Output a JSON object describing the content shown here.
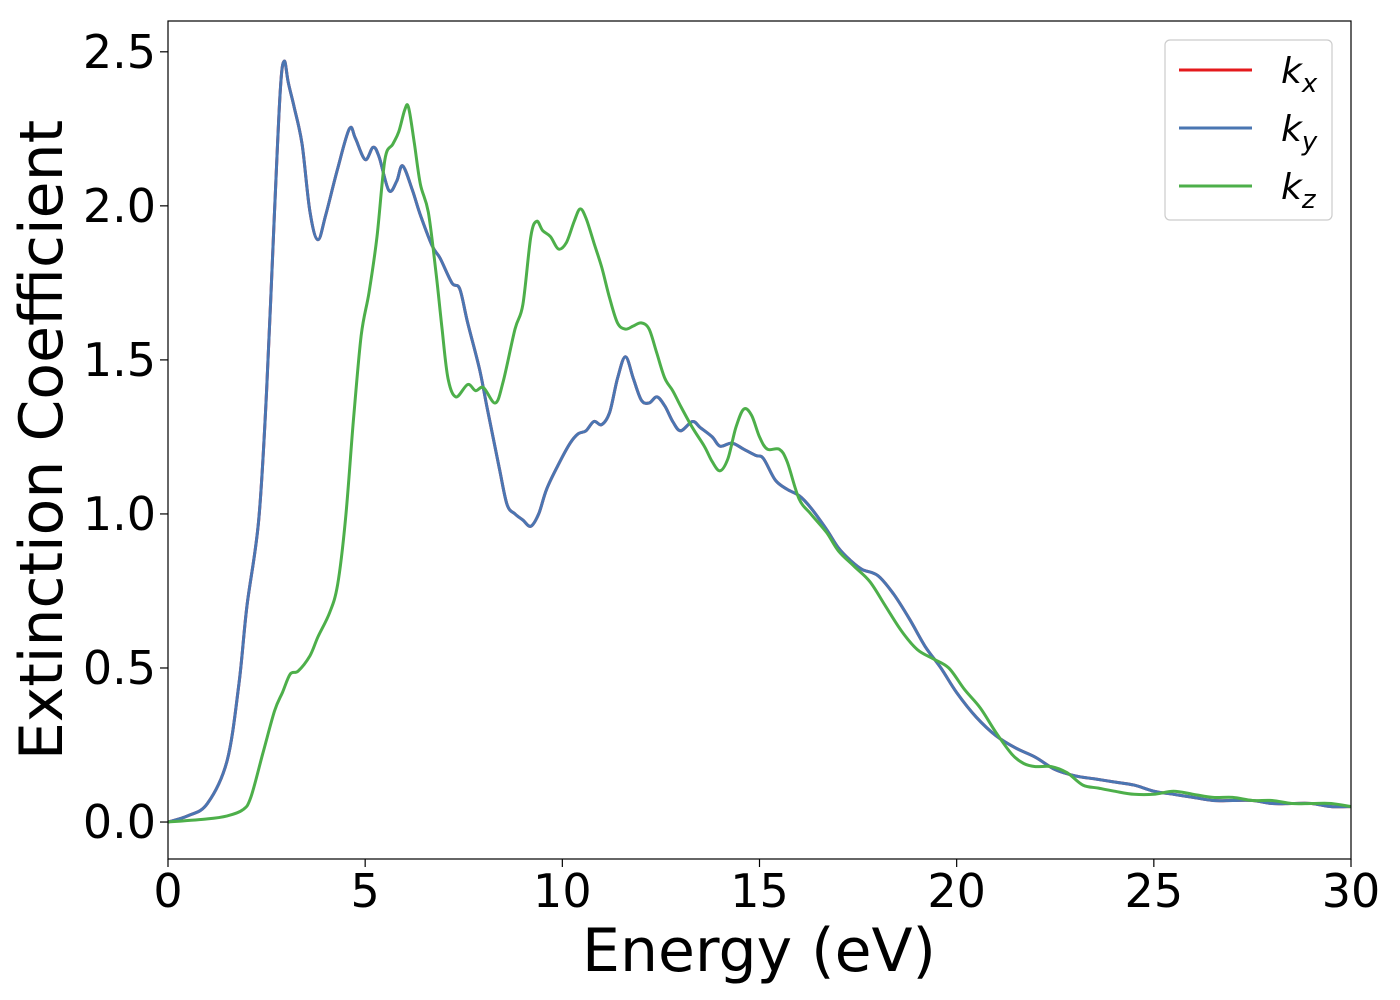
{
  "chart_data": {
    "type": "line",
    "title": "",
    "xlabel": "Energy (eV)",
    "ylabel": "Extinction Coefficient",
    "xlim": [
      0,
      30
    ],
    "ylim": [
      -0.12,
      2.6
    ],
    "xticks": [
      0,
      5,
      10,
      15,
      20,
      25,
      30
    ],
    "xtick_labels": [
      "0",
      "5",
      "10",
      "15",
      "20",
      "25",
      "30"
    ],
    "yticks": [
      0.0,
      0.5,
      1.0,
      1.5,
      2.0,
      2.5
    ],
    "ytick_labels": [
      "0.0",
      "0.5",
      "1.0",
      "1.5",
      "2.0",
      "2.5"
    ],
    "grid": false,
    "legend_position": "top-right",
    "series": [
      {
        "name": "kx",
        "legend_base": "k",
        "legend_sub": "x",
        "color": "#e41a1c",
        "points": [
          [
            0,
            0
          ],
          [
            0.5,
            0.02
          ],
          [
            1,
            0.06
          ],
          [
            1.5,
            0.2
          ],
          [
            1.8,
            0.45
          ],
          [
            2,
            0.7
          ],
          [
            2.3,
            0.98
          ],
          [
            2.5,
            1.4
          ],
          [
            2.7,
            1.98
          ],
          [
            2.85,
            2.38
          ],
          [
            2.95,
            2.47
          ],
          [
            3.05,
            2.4
          ],
          [
            3.2,
            2.32
          ],
          [
            3.4,
            2.2
          ],
          [
            3.6,
            1.98
          ],
          [
            3.8,
            1.89
          ],
          [
            4,
            1.97
          ],
          [
            4.3,
            2.12
          ],
          [
            4.6,
            2.25
          ],
          [
            4.75,
            2.22
          ],
          [
            5,
            2.15
          ],
          [
            5.2,
            2.19
          ],
          [
            5.35,
            2.16
          ],
          [
            5.6,
            2.05
          ],
          [
            5.8,
            2.08
          ],
          [
            5.95,
            2.13
          ],
          [
            6.2,
            2.05
          ],
          [
            6.4,
            1.97
          ],
          [
            6.7,
            1.87
          ],
          [
            6.9,
            1.83
          ],
          [
            7.2,
            1.75
          ],
          [
            7.4,
            1.73
          ],
          [
            7.6,
            1.62
          ],
          [
            7.9,
            1.47
          ],
          [
            8.1,
            1.34
          ],
          [
            8.4,
            1.15
          ],
          [
            8.6,
            1.03
          ],
          [
            8.8,
            1.0
          ],
          [
            9,
            0.98
          ],
          [
            9.2,
            0.96
          ],
          [
            9.4,
            1.0
          ],
          [
            9.6,
            1.08
          ],
          [
            9.9,
            1.16
          ],
          [
            10.2,
            1.23
          ],
          [
            10.4,
            1.26
          ],
          [
            10.6,
            1.27
          ],
          [
            10.8,
            1.3
          ],
          [
            11,
            1.29
          ],
          [
            11.2,
            1.33
          ],
          [
            11.4,
            1.44
          ],
          [
            11.6,
            1.51
          ],
          [
            11.8,
            1.44
          ],
          [
            12,
            1.37
          ],
          [
            12.2,
            1.36
          ],
          [
            12.4,
            1.38
          ],
          [
            12.6,
            1.35
          ],
          [
            12.8,
            1.3
          ],
          [
            13,
            1.27
          ],
          [
            13.3,
            1.3
          ],
          [
            13.5,
            1.28
          ],
          [
            13.8,
            1.25
          ],
          [
            14,
            1.22
          ],
          [
            14.3,
            1.23
          ],
          [
            14.6,
            1.21
          ],
          [
            14.9,
            1.19
          ],
          [
            15.1,
            1.18
          ],
          [
            15.4,
            1.11
          ],
          [
            15.7,
            1.08
          ],
          [
            16,
            1.06
          ],
          [
            16.3,
            1.02
          ],
          [
            16.7,
            0.95
          ],
          [
            17,
            0.89
          ],
          [
            17.3,
            0.85
          ],
          [
            17.6,
            0.82
          ],
          [
            18,
            0.8
          ],
          [
            18.4,
            0.74
          ],
          [
            18.8,
            0.66
          ],
          [
            19.2,
            0.57
          ],
          [
            19.6,
            0.5
          ],
          [
            20,
            0.42
          ],
          [
            20.5,
            0.34
          ],
          [
            21,
            0.28
          ],
          [
            21.5,
            0.24
          ],
          [
            22,
            0.21
          ],
          [
            22.5,
            0.17
          ],
          [
            23,
            0.15
          ],
          [
            23.5,
            0.14
          ],
          [
            24,
            0.13
          ],
          [
            24.5,
            0.12
          ],
          [
            25,
            0.1
          ],
          [
            25.5,
            0.09
          ],
          [
            26,
            0.08
          ],
          [
            26.5,
            0.07
          ],
          [
            27,
            0.07
          ],
          [
            27.5,
            0.07
          ],
          [
            28,
            0.06
          ],
          [
            28.5,
            0.06
          ],
          [
            29,
            0.06
          ],
          [
            29.5,
            0.05
          ],
          [
            30,
            0.05
          ]
        ]
      },
      {
        "name": "ky",
        "legend_base": "k",
        "legend_sub": "y",
        "color": "#4a76b2",
        "points": [
          [
            0,
            0
          ],
          [
            0.5,
            0.02
          ],
          [
            1,
            0.06
          ],
          [
            1.5,
            0.2
          ],
          [
            1.8,
            0.45
          ],
          [
            2,
            0.7
          ],
          [
            2.3,
            0.98
          ],
          [
            2.5,
            1.4
          ],
          [
            2.7,
            1.98
          ],
          [
            2.85,
            2.38
          ],
          [
            2.95,
            2.47
          ],
          [
            3.05,
            2.4
          ],
          [
            3.2,
            2.32
          ],
          [
            3.4,
            2.2
          ],
          [
            3.6,
            1.98
          ],
          [
            3.8,
            1.89
          ],
          [
            4,
            1.97
          ],
          [
            4.3,
            2.12
          ],
          [
            4.6,
            2.25
          ],
          [
            4.75,
            2.22
          ],
          [
            5,
            2.15
          ],
          [
            5.2,
            2.19
          ],
          [
            5.35,
            2.16
          ],
          [
            5.6,
            2.05
          ],
          [
            5.8,
            2.08
          ],
          [
            5.95,
            2.13
          ],
          [
            6.2,
            2.05
          ],
          [
            6.4,
            1.97
          ],
          [
            6.7,
            1.87
          ],
          [
            6.9,
            1.83
          ],
          [
            7.2,
            1.75
          ],
          [
            7.4,
            1.73
          ],
          [
            7.6,
            1.62
          ],
          [
            7.9,
            1.47
          ],
          [
            8.1,
            1.34
          ],
          [
            8.4,
            1.15
          ],
          [
            8.6,
            1.03
          ],
          [
            8.8,
            1.0
          ],
          [
            9,
            0.98
          ],
          [
            9.2,
            0.96
          ],
          [
            9.4,
            1.0
          ],
          [
            9.6,
            1.08
          ],
          [
            9.9,
            1.16
          ],
          [
            10.2,
            1.23
          ],
          [
            10.4,
            1.26
          ],
          [
            10.6,
            1.27
          ],
          [
            10.8,
            1.3
          ],
          [
            11,
            1.29
          ],
          [
            11.2,
            1.33
          ],
          [
            11.4,
            1.44
          ],
          [
            11.6,
            1.51
          ],
          [
            11.8,
            1.44
          ],
          [
            12,
            1.37
          ],
          [
            12.2,
            1.36
          ],
          [
            12.4,
            1.38
          ],
          [
            12.6,
            1.35
          ],
          [
            12.8,
            1.3
          ],
          [
            13,
            1.27
          ],
          [
            13.3,
            1.3
          ],
          [
            13.5,
            1.28
          ],
          [
            13.8,
            1.25
          ],
          [
            14,
            1.22
          ],
          [
            14.3,
            1.23
          ],
          [
            14.6,
            1.21
          ],
          [
            14.9,
            1.19
          ],
          [
            15.1,
            1.18
          ],
          [
            15.4,
            1.11
          ],
          [
            15.7,
            1.08
          ],
          [
            16,
            1.06
          ],
          [
            16.3,
            1.02
          ],
          [
            16.7,
            0.95
          ],
          [
            17,
            0.89
          ],
          [
            17.3,
            0.85
          ],
          [
            17.6,
            0.82
          ],
          [
            18,
            0.8
          ],
          [
            18.4,
            0.74
          ],
          [
            18.8,
            0.66
          ],
          [
            19.2,
            0.57
          ],
          [
            19.6,
            0.5
          ],
          [
            20,
            0.42
          ],
          [
            20.5,
            0.34
          ],
          [
            21,
            0.28
          ],
          [
            21.5,
            0.24
          ],
          [
            22,
            0.21
          ],
          [
            22.5,
            0.17
          ],
          [
            23,
            0.15
          ],
          [
            23.5,
            0.14
          ],
          [
            24,
            0.13
          ],
          [
            24.5,
            0.12
          ],
          [
            25,
            0.1
          ],
          [
            25.5,
            0.09
          ],
          [
            26,
            0.08
          ],
          [
            26.5,
            0.07
          ],
          [
            27,
            0.07
          ],
          [
            27.5,
            0.07
          ],
          [
            28,
            0.06
          ],
          [
            28.5,
            0.06
          ],
          [
            29,
            0.06
          ],
          [
            29.5,
            0.05
          ],
          [
            30,
            0.05
          ]
        ]
      },
      {
        "name": "kz",
        "legend_base": "k",
        "legend_sub": "z",
        "color": "#4daf4a",
        "points": [
          [
            0,
            0
          ],
          [
            1,
            0.01
          ],
          [
            1.5,
            0.02
          ],
          [
            1.9,
            0.04
          ],
          [
            2.1,
            0.08
          ],
          [
            2.4,
            0.22
          ],
          [
            2.7,
            0.36
          ],
          [
            2.9,
            0.42
          ],
          [
            3.1,
            0.48
          ],
          [
            3.3,
            0.49
          ],
          [
            3.6,
            0.54
          ],
          [
            3.8,
            0.6
          ],
          [
            4.1,
            0.68
          ],
          [
            4.3,
            0.77
          ],
          [
            4.5,
            0.98
          ],
          [
            4.7,
            1.3
          ],
          [
            4.9,
            1.58
          ],
          [
            5.1,
            1.72
          ],
          [
            5.3,
            1.9
          ],
          [
            5.5,
            2.15
          ],
          [
            5.7,
            2.2
          ],
          [
            5.85,
            2.24
          ],
          [
            6,
            2.31
          ],
          [
            6.1,
            2.32
          ],
          [
            6.25,
            2.2
          ],
          [
            6.4,
            2.07
          ],
          [
            6.6,
            1.98
          ],
          [
            6.8,
            1.78
          ],
          [
            6.95,
            1.6
          ],
          [
            7.1,
            1.44
          ],
          [
            7.3,
            1.38
          ],
          [
            7.6,
            1.42
          ],
          [
            7.8,
            1.4
          ],
          [
            8,
            1.41
          ],
          [
            8.3,
            1.36
          ],
          [
            8.5,
            1.43
          ],
          [
            8.8,
            1.6
          ],
          [
            9,
            1.68
          ],
          [
            9.2,
            1.9
          ],
          [
            9.35,
            1.95
          ],
          [
            9.5,
            1.92
          ],
          [
            9.7,
            1.9
          ],
          [
            9.9,
            1.86
          ],
          [
            10.1,
            1.88
          ],
          [
            10.3,
            1.95
          ],
          [
            10.45,
            1.99
          ],
          [
            10.6,
            1.96
          ],
          [
            10.8,
            1.88
          ],
          [
            11,
            1.8
          ],
          [
            11.2,
            1.7
          ],
          [
            11.4,
            1.62
          ],
          [
            11.6,
            1.6
          ],
          [
            11.8,
            1.61
          ],
          [
            12,
            1.62
          ],
          [
            12.2,
            1.6
          ],
          [
            12.4,
            1.52
          ],
          [
            12.6,
            1.44
          ],
          [
            12.8,
            1.4
          ],
          [
            13,
            1.35
          ],
          [
            13.3,
            1.28
          ],
          [
            13.6,
            1.22
          ],
          [
            13.8,
            1.17
          ],
          [
            14,
            1.14
          ],
          [
            14.2,
            1.18
          ],
          [
            14.4,
            1.28
          ],
          [
            14.6,
            1.34
          ],
          [
            14.8,
            1.32
          ],
          [
            15,
            1.25
          ],
          [
            15.2,
            1.21
          ],
          [
            15.5,
            1.21
          ],
          [
            15.7,
            1.17
          ],
          [
            16,
            1.05
          ],
          [
            16.3,
            1.0
          ],
          [
            16.7,
            0.94
          ],
          [
            17,
            0.88
          ],
          [
            17.4,
            0.83
          ],
          [
            17.8,
            0.78
          ],
          [
            18.2,
            0.7
          ],
          [
            18.6,
            0.62
          ],
          [
            19,
            0.56
          ],
          [
            19.4,
            0.53
          ],
          [
            19.8,
            0.5
          ],
          [
            20.2,
            0.43
          ],
          [
            20.6,
            0.37
          ],
          [
            21,
            0.29
          ],
          [
            21.4,
            0.22
          ],
          [
            21.7,
            0.19
          ],
          [
            22,
            0.18
          ],
          [
            22.4,
            0.18
          ],
          [
            22.8,
            0.16
          ],
          [
            23.2,
            0.12
          ],
          [
            23.6,
            0.11
          ],
          [
            24,
            0.1
          ],
          [
            24.5,
            0.09
          ],
          [
            25,
            0.09
          ],
          [
            25.5,
            0.1
          ],
          [
            26,
            0.09
          ],
          [
            26.5,
            0.08
          ],
          [
            27,
            0.08
          ],
          [
            27.5,
            0.07
          ],
          [
            28,
            0.07
          ],
          [
            28.5,
            0.06
          ],
          [
            29,
            0.06
          ],
          [
            29.5,
            0.06
          ],
          [
            30,
            0.05
          ]
        ]
      }
    ]
  }
}
